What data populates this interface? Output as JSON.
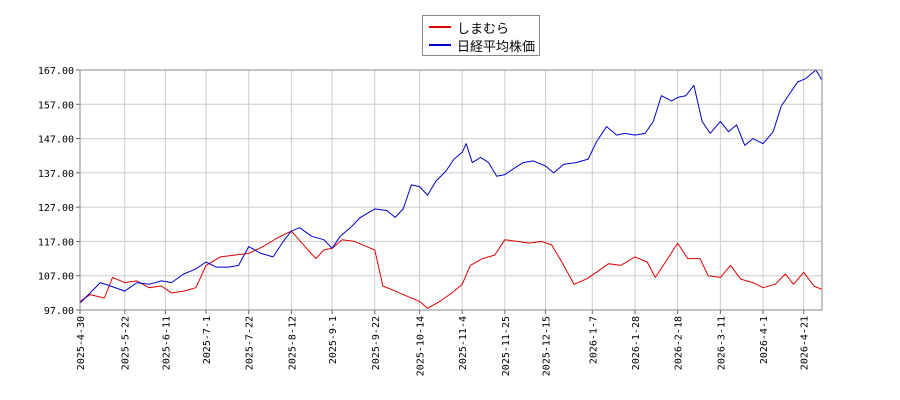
{
  "chart_data": {
    "type": "line",
    "title": "",
    "xlabel": "",
    "ylabel": "",
    "ylim": [
      97,
      167
    ],
    "grid": true,
    "legend_position": "top-center",
    "y_ticks": [
      "97.00",
      "107.00",
      "117.00",
      "127.00",
      "137.00",
      "147.00",
      "157.00",
      "167.00"
    ],
    "x_ticks": [
      "2025-4-30",
      "2025-5-22",
      "2025-6-11",
      "2025-7-1",
      "2025-7-22",
      "2025-8-12",
      "2025-9-1",
      "2025-9-22",
      "2025-10-14",
      "2025-11-4",
      "2025-11-25",
      "2025-12-15",
      "2026-1-7",
      "2026-1-28",
      "2026-2-18",
      "2026-3-11",
      "2026-4-1",
      "2026-4-21"
    ],
    "x_range": [
      "2025-04-30",
      "2026-04-30"
    ],
    "series": [
      {
        "name": "しまむら",
        "color": "#dd0000",
        "points": [
          [
            "2025-04-30",
            99.5
          ],
          [
            "2025-05-05",
            101.5
          ],
          [
            "2025-05-12",
            100.5
          ],
          [
            "2025-05-16",
            106.5
          ],
          [
            "2025-05-22",
            105.0
          ],
          [
            "2025-05-28",
            105.5
          ],
          [
            "2025-06-03",
            103.5
          ],
          [
            "2025-06-09",
            104.0
          ],
          [
            "2025-06-14",
            102.0
          ],
          [
            "2025-06-20",
            102.5
          ],
          [
            "2025-06-26",
            103.5
          ],
          [
            "2025-07-01",
            110.0
          ],
          [
            "2025-07-08",
            112.5
          ],
          [
            "2025-07-15",
            113.0
          ],
          [
            "2025-07-22",
            113.5
          ],
          [
            "2025-07-29",
            115.5
          ],
          [
            "2025-08-05",
            118.0
          ],
          [
            "2025-08-12",
            120.0
          ],
          [
            "2025-08-18",
            116.0
          ],
          [
            "2025-08-24",
            112.0
          ],
          [
            "2025-08-28",
            114.5
          ],
          [
            "2025-09-01",
            115.0
          ],
          [
            "2025-09-06",
            117.5
          ],
          [
            "2025-09-12",
            117.0
          ],
          [
            "2025-09-18",
            115.5
          ],
          [
            "2025-09-22",
            114.5
          ],
          [
            "2025-09-26",
            104.0
          ],
          [
            "2025-10-02",
            102.5
          ],
          [
            "2025-10-08",
            101.0
          ],
          [
            "2025-10-14",
            99.5
          ],
          [
            "2025-10-18",
            97.5
          ],
          [
            "2025-10-24",
            99.5
          ],
          [
            "2025-10-30",
            102.0
          ],
          [
            "2025-11-04",
            104.5
          ],
          [
            "2025-11-08",
            110.0
          ],
          [
            "2025-11-14",
            112.0
          ],
          [
            "2025-11-20",
            113.0
          ],
          [
            "2025-11-25",
            117.5
          ],
          [
            "2025-12-01",
            117.0
          ],
          [
            "2025-12-07",
            116.5
          ],
          [
            "2025-12-13",
            117.0
          ],
          [
            "2025-12-18",
            116.0
          ],
          [
            "2025-12-23",
            111.0
          ],
          [
            "2025-12-29",
            104.5
          ],
          [
            "2026-01-04",
            106.0
          ],
          [
            "2026-01-09",
            108.0
          ],
          [
            "2026-01-15",
            110.5
          ],
          [
            "2026-01-21",
            110.0
          ],
          [
            "2026-01-28",
            112.5
          ],
          [
            "2026-02-03",
            111.0
          ],
          [
            "2026-02-07",
            106.5
          ],
          [
            "2026-02-12",
            111.0
          ],
          [
            "2026-02-18",
            116.5
          ],
          [
            "2026-02-23",
            112.0
          ],
          [
            "2026-03-01",
            112.0
          ],
          [
            "2026-03-05",
            107.0
          ],
          [
            "2026-03-11",
            106.5
          ],
          [
            "2026-03-16",
            110.0
          ],
          [
            "2026-03-21",
            106.0
          ],
          [
            "2026-03-27",
            105.0
          ],
          [
            "2026-04-01",
            103.5
          ],
          [
            "2026-04-07",
            104.5
          ],
          [
            "2026-04-12",
            107.5
          ],
          [
            "2026-04-16",
            104.5
          ],
          [
            "2026-04-21",
            108.0
          ],
          [
            "2026-04-26",
            104.0
          ],
          [
            "2026-04-30",
            103.0
          ]
        ]
      },
      {
        "name": "日経平均株価",
        "color": "#0000cc",
        "points": [
          [
            "2025-04-30",
            99.0
          ],
          [
            "2025-05-05",
            102.0
          ],
          [
            "2025-05-10",
            105.0
          ],
          [
            "2025-05-15",
            104.0
          ],
          [
            "2025-05-22",
            102.5
          ],
          [
            "2025-05-28",
            105.0
          ],
          [
            "2025-06-03",
            104.5
          ],
          [
            "2025-06-09",
            105.5
          ],
          [
            "2025-06-14",
            105.0
          ],
          [
            "2025-06-20",
            107.5
          ],
          [
            "2025-06-26",
            109.0
          ],
          [
            "2025-07-01",
            111.0
          ],
          [
            "2025-07-06",
            109.5
          ],
          [
            "2025-07-12",
            109.5
          ],
          [
            "2025-07-17",
            110.0
          ],
          [
            "2025-07-22",
            115.5
          ],
          [
            "2025-07-28",
            113.5
          ],
          [
            "2025-08-03",
            112.5
          ],
          [
            "2025-08-08",
            117.0
          ],
          [
            "2025-08-12",
            120.0
          ],
          [
            "2025-08-16",
            121.0
          ],
          [
            "2025-08-22",
            118.5
          ],
          [
            "2025-08-28",
            117.5
          ],
          [
            "2025-09-01",
            115.0
          ],
          [
            "2025-09-05",
            118.5
          ],
          [
            "2025-09-10",
            121.0
          ],
          [
            "2025-09-15",
            124.0
          ],
          [
            "2025-09-22",
            126.5
          ],
          [
            "2025-09-28",
            126.0
          ],
          [
            "2025-10-02",
            124.0
          ],
          [
            "2025-10-06",
            126.5
          ],
          [
            "2025-10-10",
            133.5
          ],
          [
            "2025-10-14",
            133.0
          ],
          [
            "2025-10-18",
            130.5
          ],
          [
            "2025-10-22",
            134.5
          ],
          [
            "2025-10-27",
            137.5
          ],
          [
            "2025-10-31",
            141.0
          ],
          [
            "2025-11-04",
            143.0
          ],
          [
            "2025-11-06",
            145.5
          ],
          [
            "2025-11-09",
            140.0
          ],
          [
            "2025-11-13",
            141.5
          ],
          [
            "2025-11-17",
            140.0
          ],
          [
            "2025-11-21",
            136.0
          ],
          [
            "2025-11-25",
            136.5
          ],
          [
            "2025-11-30",
            138.5
          ],
          [
            "2025-12-04",
            140.0
          ],
          [
            "2025-12-09",
            140.5
          ],
          [
            "2025-12-15",
            139.0
          ],
          [
            "2025-12-19",
            137.0
          ],
          [
            "2025-12-24",
            139.5
          ],
          [
            "2025-12-30",
            140.0
          ],
          [
            "2026-01-05",
            141.0
          ],
          [
            "2026-01-09",
            146.0
          ],
          [
            "2026-01-14",
            150.5
          ],
          [
            "2026-01-19",
            148.0
          ],
          [
            "2026-01-23",
            148.5
          ],
          [
            "2026-01-28",
            148.0
          ],
          [
            "2026-02-02",
            148.5
          ],
          [
            "2026-02-06",
            152.0
          ],
          [
            "2026-02-10",
            159.5
          ],
          [
            "2026-02-15",
            158.0
          ],
          [
            "2026-02-18",
            159.0
          ],
          [
            "2026-02-22",
            159.5
          ],
          [
            "2026-02-26",
            162.5
          ],
          [
            "2026-03-02",
            152.0
          ],
          [
            "2026-03-06",
            148.5
          ],
          [
            "2026-03-11",
            152.0
          ],
          [
            "2026-03-15",
            149.0
          ],
          [
            "2026-03-19",
            151.0
          ],
          [
            "2026-03-23",
            145.0
          ],
          [
            "2026-03-27",
            147.0
          ],
          [
            "2026-04-01",
            145.5
          ],
          [
            "2026-04-06",
            149.0
          ],
          [
            "2026-04-10",
            156.5
          ],
          [
            "2026-04-14",
            160.0
          ],
          [
            "2026-04-18",
            163.5
          ],
          [
            "2026-04-22",
            164.5
          ],
          [
            "2026-04-27",
            167.0
          ],
          [
            "2026-04-30",
            164.0
          ]
        ]
      }
    ]
  }
}
